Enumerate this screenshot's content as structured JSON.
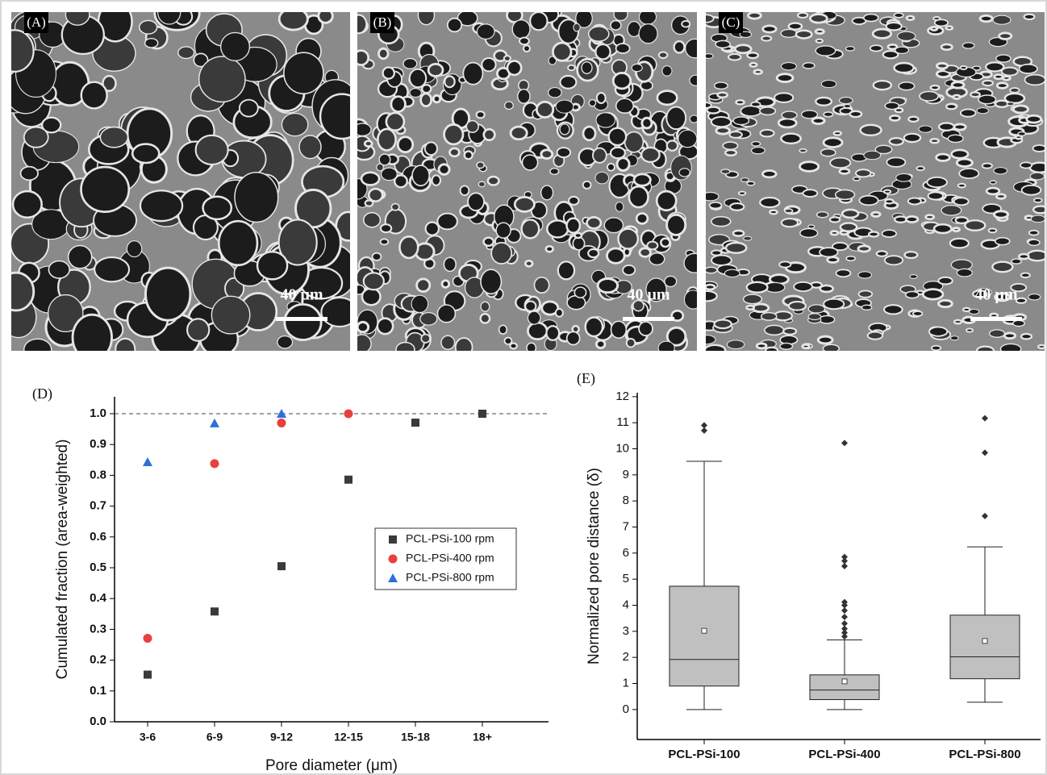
{
  "images": [
    {
      "label": "(A)",
      "scale_bar": "40 μm"
    },
    {
      "label": "(B)",
      "scale_bar": "40 μm"
    },
    {
      "label": "(C)",
      "scale_bar": "40 μm"
    }
  ],
  "chart_data": [
    {
      "type": "scatter",
      "panel_label": "(D)",
      "x_label": "Pore diameter (μm)",
      "y_label": "Cumulated fraction (area-weighted)",
      "categories": [
        "3-6",
        "6-9",
        "9-12",
        "12-15",
        "15-18",
        "18+"
      ],
      "series": [
        {
          "name": "PCL-PSi-100 rpm",
          "color": "#3a3a3a",
          "marker": "square",
          "values": [
            0.153,
            0.358,
            0.505,
            0.786,
            0.971,
            1.0
          ]
        },
        {
          "name": "PCL-PSi-400 rpm",
          "color": "#e8403f",
          "marker": "circle",
          "values": [
            0.271,
            0.838,
            0.97,
            1.0,
            null,
            null
          ]
        },
        {
          "name": "PCL-PSi-800 rpm",
          "color": "#2f6fdc",
          "marker": "triangle",
          "values": [
            0.843,
            0.969,
            1.0,
            null,
            null,
            null
          ]
        }
      ],
      "ylim": [
        0,
        1.055
      ],
      "yticks": [
        {
          "value": 0,
          "label": "0.0"
        },
        0.1,
        0.2,
        0.3,
        0.4,
        0.5,
        0.6,
        0.7,
        0.8,
        0.9,
        {
          "value": 1,
          "label": "1.0"
        }
      ],
      "reference_line": 1.0,
      "legend": "right"
    },
    {
      "type": "box",
      "panel_label": "(E)",
      "y_label": "Normalized pore distance (δ)",
      "categories": [
        "PCL-PSi-100",
        "PCL-PSi-400",
        "PCL-PSi-800"
      ],
      "color": "#c0c0c0",
      "boxes": [
        {
          "min": 0,
          "q1": 0.9,
          "median": 1.92,
          "q3": 4.73,
          "max": 9.52,
          "mean": 3.02,
          "outliers": [
            10.7,
            10.9
          ]
        },
        {
          "min": 0,
          "q1": 0.38,
          "median": 0.75,
          "q3": 1.33,
          "max": 2.67,
          "mean": 1.08,
          "outliers": [
            2.8,
            2.95,
            3.1,
            3.3,
            3.55,
            3.8,
            4.0,
            4.12,
            5.5,
            5.7,
            5.85,
            10.22
          ]
        },
        {
          "min": 0.28,
          "q1": 1.18,
          "median": 2.02,
          "q3": 3.62,
          "max": 6.24,
          "mean": 2.63,
          "outliers": [
            7.42,
            9.85,
            11.17
          ]
        }
      ],
      "ylim": [
        -1.15,
        12.15
      ],
      "yticks": [
        0,
        1,
        2,
        3,
        4,
        5,
        6,
        7,
        8,
        9,
        10,
        11,
        12
      ]
    }
  ]
}
